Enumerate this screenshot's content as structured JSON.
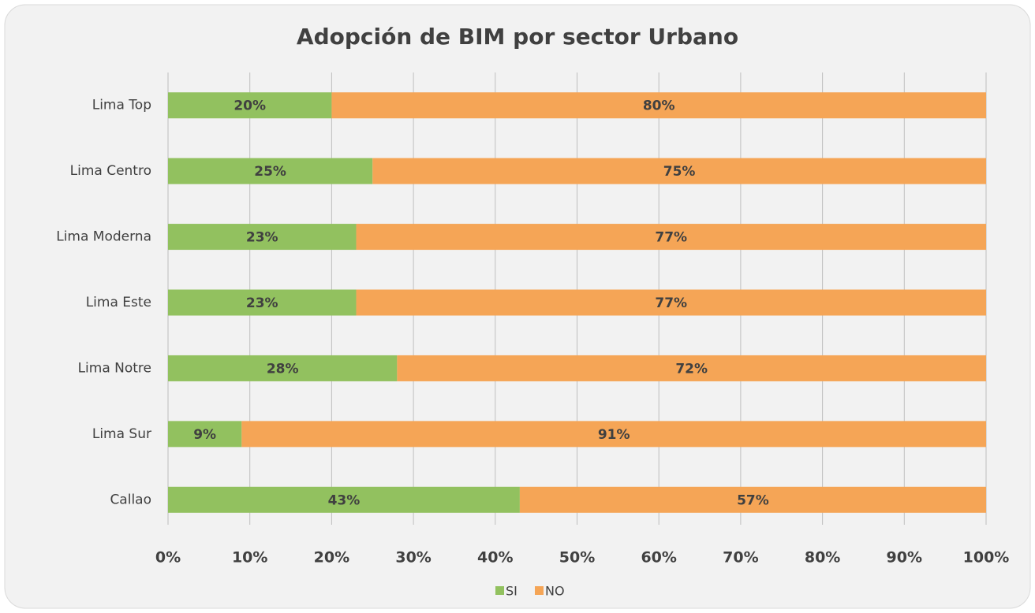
{
  "chart_data": {
    "type": "stacked-barh",
    "title": "Adopción de BIM por sector Urbano",
    "categories": [
      "Lima Top",
      "Lima Centro",
      "Lima Moderna",
      "Lima Este",
      "Lima Notre",
      "Lima Sur",
      "Callao"
    ],
    "series": [
      {
        "name": "SI",
        "color": "#92c15f",
        "values": [
          20,
          25,
          23,
          23,
          28,
          9,
          43
        ],
        "value_labels": [
          "20%",
          "25%",
          "23%",
          "23%",
          "28%",
          "9%",
          "43%"
        ]
      },
      {
        "name": "NO",
        "color": "#f5a556",
        "values": [
          80,
          75,
          77,
          77,
          72,
          91,
          57
        ],
        "value_labels": [
          "80%",
          "75%",
          "77%",
          "77%",
          "72%",
          "91%",
          "57%"
        ]
      }
    ],
    "xlim": [
      0,
      100
    ],
    "xticks": [
      {
        "value": 0,
        "label": "0%"
      },
      {
        "value": 10,
        "label": "10%"
      },
      {
        "value": 20,
        "label": "20%"
      },
      {
        "value": 30,
        "label": "30%"
      },
      {
        "value": 40,
        "label": "40%"
      },
      {
        "value": 50,
        "label": "50%"
      },
      {
        "value": 60,
        "label": "60%"
      },
      {
        "value": 70,
        "label": "70%"
      },
      {
        "value": 80,
        "label": "80%"
      },
      {
        "value": 90,
        "label": "90%"
      },
      {
        "value": 100,
        "label": "100%"
      }
    ],
    "grid": true,
    "legend": "bottom"
  }
}
